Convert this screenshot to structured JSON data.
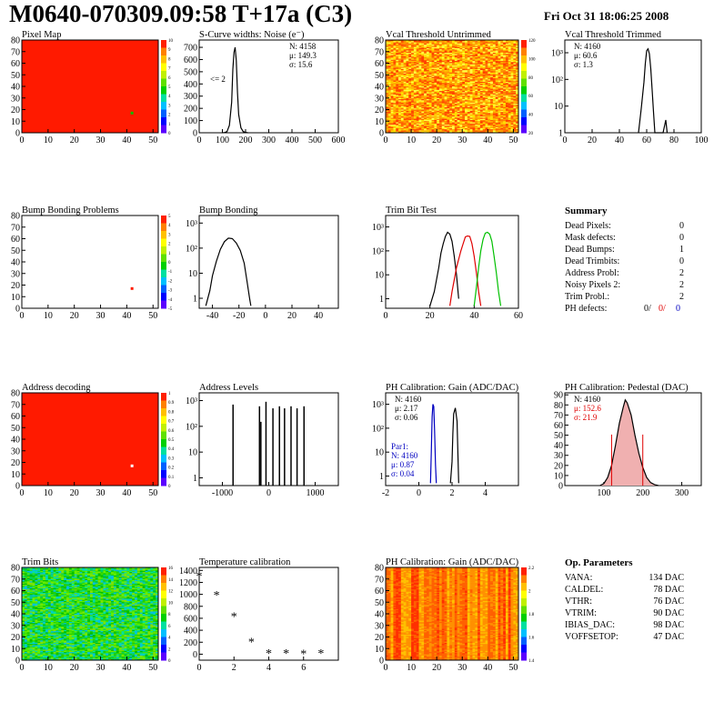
{
  "header": {
    "title": "M0640-070309.09:58 T+17a (C3)",
    "date": "Fri Oct 31 18:06:25 2008"
  },
  "palette": {
    "chip_red": "#ff1a00",
    "black": "#000000",
    "red": "#e00000",
    "green": "#00c000",
    "blue": "#0000c0",
    "rainbow": [
      "#5a00ff",
      "#0000ff",
      "#0060ff",
      "#00c0ff",
      "#00e0a0",
      "#00d000",
      "#60e000",
      "#c0f000",
      "#ffff00",
      "#ffc000",
      "#ff8000",
      "#ff2000"
    ]
  },
  "panels": [
    {
      "id": "pixel-map",
      "title": "Pixel Map",
      "kind": "map",
      "xticks": [
        0,
        10,
        20,
        30,
        40,
        50
      ],
      "yticks": [
        0,
        10,
        20,
        30,
        40,
        50,
        60,
        70,
        80
      ],
      "xrange": [
        0,
        52
      ],
      "yrange": [
        0,
        80
      ],
      "fill": "uniform-red",
      "dots": [
        {
          "x": 42,
          "y": 17,
          "color": "#00c000"
        }
      ],
      "zlabels": [
        "10",
        "9",
        "8",
        "7",
        "6",
        "5",
        "4",
        "3",
        "2",
        "1",
        "0"
      ]
    },
    {
      "id": "s-curve-widths",
      "title": "S-Curve widths: Noise (e⁻)",
      "kind": "histo",
      "xticks": [
        0,
        100,
        200,
        300,
        400,
        500,
        600
      ],
      "xrange": [
        0,
        600
      ],
      "yticks": [
        0,
        100,
        200,
        300,
        400,
        500,
        600,
        700
      ],
      "yrange": [
        0,
        760
      ],
      "log": false,
      "stats": [
        "N: 4158",
        "μ: 149.3",
        "σ: 15.6"
      ],
      "annotation": "<= 2",
      "series": [
        {
          "color": "#000000",
          "points": [
            [
              100,
              0
            ],
            [
              110,
              2
            ],
            [
              120,
              10
            ],
            [
              130,
              60
            ],
            [
              140,
              250
            ],
            [
              145,
              520
            ],
            [
              150,
              660
            ],
            [
              155,
              700
            ],
            [
              160,
              590
            ],
            [
              165,
              330
            ],
            [
              170,
              150
            ],
            [
              180,
              40
            ],
            [
              190,
              10
            ],
            [
              200,
              3
            ],
            [
              210,
              0
            ]
          ]
        }
      ]
    },
    {
      "id": "vcal-threshold-untrimmed",
      "title": "Vcal Threshold Untrimmed",
      "kind": "heat",
      "heat": "orange",
      "xticks": [
        0,
        10,
        20,
        30,
        40,
        50
      ],
      "yticks": [
        0,
        10,
        20,
        30,
        40,
        50,
        60,
        70,
        80
      ],
      "xrange": [
        0,
        52
      ],
      "yrange": [
        0,
        80
      ],
      "zlabels": [
        "120",
        "100",
        "80",
        "60",
        "40",
        "20"
      ]
    },
    {
      "id": "vcal-threshold-trimmed",
      "title": "Vcal Threshold Trimmed",
      "kind": "histo",
      "xticks": [
        0,
        20,
        40,
        60,
        80,
        100
      ],
      "xrange": [
        0,
        100
      ],
      "yticks": [
        1,
        10,
        100,
        1000
      ],
      "yticklabels": [
        "1",
        "10",
        "10²",
        "10³"
      ],
      "yrange": [
        1,
        3000
      ],
      "log": true,
      "stats": [
        "N: 4160",
        "μ: 60.6",
        "σ:  1.3"
      ],
      "series": [
        {
          "color": "#000000",
          "points": [
            [
              54,
              1
            ],
            [
              56,
              8
            ],
            [
              58,
              80
            ],
            [
              59,
              400
            ],
            [
              60,
              1200
            ],
            [
              61,
              1400
            ],
            [
              62,
              900
            ],
            [
              63,
              250
            ],
            [
              64,
              40
            ],
            [
              65,
              6
            ],
            [
              66,
              1
            ],
            [
              72,
              1
            ],
            [
              74,
              3
            ],
            [
              75,
              1
            ]
          ]
        }
      ]
    },
    {
      "id": "bump-bonding-problems",
      "title": "Bump Bonding Problems",
      "kind": "map",
      "xticks": [
        0,
        10,
        20,
        30,
        40,
        50
      ],
      "yticks": [
        0,
        10,
        20,
        30,
        40,
        50,
        60,
        70,
        80
      ],
      "xrange": [
        0,
        52
      ],
      "yrange": [
        0,
        80
      ],
      "fill": "white",
      "dots": [
        {
          "x": 42,
          "y": 17,
          "color": "#ff1a00"
        }
      ],
      "zlabels": [
        "5",
        "4",
        "3",
        "2",
        "1",
        "0",
        "-1",
        "-2",
        "-3",
        "-4",
        "-5"
      ]
    },
    {
      "id": "bump-bonding",
      "title": "Bump Bonding",
      "kind": "histo",
      "xticks": [
        -40,
        -20,
        0,
        20,
        40
      ],
      "xrange": [
        -50,
        55
      ],
      "yticks": [
        1,
        10,
        100,
        1000
      ],
      "yticklabels": [
        "1",
        "10",
        "10²",
        "10³"
      ],
      "yrange": [
        0.4,
        2000
      ],
      "log": true,
      "series": [
        {
          "color": "#000000",
          "points": [
            [
              -45,
              0.5
            ],
            [
              -42,
              2
            ],
            [
              -40,
              8
            ],
            [
              -37,
              30
            ],
            [
              -34,
              90
            ],
            [
              -31,
              180
            ],
            [
              -28,
              250
            ],
            [
              -25,
              240
            ],
            [
              -22,
              160
            ],
            [
              -19,
              80
            ],
            [
              -16,
              25
            ],
            [
              -14,
              5
            ],
            [
              -12,
              1
            ],
            [
              -11,
              0.5
            ]
          ]
        }
      ]
    },
    {
      "id": "trim-bit-test",
      "title": "Trim Bit Test",
      "kind": "histo",
      "xticks": [
        0,
        20,
        40,
        60
      ],
      "xrange": [
        0,
        60
      ],
      "yticks": [
        1,
        10,
        100,
        1000
      ],
      "yticklabels": [
        "1",
        "10",
        "10²",
        "10³"
      ],
      "yrange": [
        0.4,
        3000
      ],
      "log": true,
      "series": [
        {
          "color": "#000000",
          "points": [
            [
              20,
              0.5
            ],
            [
              22,
              2
            ],
            [
              24,
              20
            ],
            [
              25,
              80
            ],
            [
              26,
              200
            ],
            [
              27,
              400
            ],
            [
              28,
              600
            ],
            [
              29,
              500
            ],
            [
              30,
              250
            ],
            [
              31,
              60
            ],
            [
              32,
              10
            ],
            [
              33,
              1
            ]
          ]
        },
        {
          "color": "#e00000",
          "points": [
            [
              29,
              0.5
            ],
            [
              30,
              2
            ],
            [
              32,
              20
            ],
            [
              34,
              100
            ],
            [
              35,
              200
            ],
            [
              36,
              380
            ],
            [
              37,
              420
            ],
            [
              38,
              400
            ],
            [
              39,
              200
            ],
            [
              40,
              60
            ],
            [
              41,
              12
            ],
            [
              42,
              2
            ],
            [
              43,
              0.5
            ]
          ]
        },
        {
          "color": "#00c000",
          "points": [
            [
              40,
              0.5
            ],
            [
              41,
              3
            ],
            [
              42,
              20
            ],
            [
              43,
              100
            ],
            [
              44,
              300
            ],
            [
              45,
              550
            ],
            [
              46,
              600
            ],
            [
              47,
              500
            ],
            [
              48,
              250
            ],
            [
              49,
              60
            ],
            [
              50,
              12
            ],
            [
              51,
              2
            ],
            [
              52,
              0.5
            ]
          ]
        }
      ]
    },
    {
      "id": "summary",
      "title": "Summary",
      "kind": "table",
      "rows": [
        [
          "Dead Pixels:",
          "0"
        ],
        [
          "Mask defects:",
          "0"
        ],
        [
          "Dead Bumps:",
          "1"
        ],
        [
          "Dead Trimbits:",
          "0"
        ],
        [
          "Address Probl:",
          "2"
        ],
        [
          "Noisy Pixels 2:",
          "2"
        ],
        [
          "Trim Probl.:",
          "2"
        ]
      ],
      "ph_row": {
        "label": "PH defects:",
        "values": [
          "0/",
          "0/",
          "0"
        ],
        "colors": [
          "#000000",
          "#e00000",
          "#0000c0"
        ]
      }
    },
    {
      "id": "address-decoding",
      "title": "Address decoding",
      "kind": "map",
      "xticks": [
        0,
        10,
        20,
        30,
        40,
        50
      ],
      "yticks": [
        0,
        10,
        20,
        30,
        40,
        50,
        60,
        70,
        80
      ],
      "xrange": [
        0,
        52
      ],
      "yrange": [
        0,
        80
      ],
      "fill": "uniform-red",
      "dots": [
        {
          "x": 42,
          "y": 17,
          "color": "#ffffff"
        }
      ],
      "zlabels": [
        "1",
        "0.9",
        "0.8",
        "0.7",
        "0.6",
        "0.5",
        "0.4",
        "0.3",
        "0.2",
        "0.1",
        "0"
      ]
    },
    {
      "id": "address-levels",
      "title": "Address Levels",
      "kind": "spikes",
      "xticks": [
        -1000,
        0,
        1000
      ],
      "xrange": [
        -1500,
        1500
      ],
      "yticks": [
        1,
        10,
        100,
        1000
      ],
      "yticklabels": [
        "1",
        "10",
        "10²",
        "10³"
      ],
      "yrange": [
        0.5,
        2000
      ],
      "log": true,
      "spikes": [
        [
          -770,
          700
        ],
        [
          -200,
          600
        ],
        [
          -170,
          150
        ],
        [
          -60,
          900
        ],
        [
          90,
          500
        ],
        [
          230,
          600
        ],
        [
          340,
          500
        ],
        [
          480,
          600
        ],
        [
          610,
          500
        ],
        [
          760,
          600
        ]
      ]
    },
    {
      "id": "ph-calibration-gain",
      "title": "PH Calibration: Gain (ADC/DAC)",
      "kind": "histo",
      "xticks": [
        -2,
        0,
        2,
        4
      ],
      "xrange": [
        -2,
        6
      ],
      "yticks": [
        1,
        10,
        100,
        1000
      ],
      "yticklabels": [
        "1",
        "10",
        "10²",
        "10³"
      ],
      "yrange": [
        0.4,
        3000
      ],
      "log": true,
      "stats": [
        "N: 4160",
        "μ: 2.17",
        "σ: 0.06"
      ],
      "stats2": {
        "color": "#0000c0",
        "lines": [
          "Par1:",
          "N: 4160",
          "μ: 0.87",
          "σ: 0.04"
        ]
      },
      "series": [
        {
          "color": "#000000",
          "points": [
            [
              1.9,
              0.5
            ],
            [
              2.0,
              4
            ],
            [
              2.05,
              60
            ],
            [
              2.1,
              400
            ],
            [
              2.2,
              700
            ],
            [
              2.3,
              200
            ],
            [
              2.35,
              10
            ],
            [
              2.4,
              0.5
            ]
          ]
        },
        {
          "color": "#0000c0",
          "points": [
            [
              0.7,
              0.5
            ],
            [
              0.75,
              10
            ],
            [
              0.8,
              300
            ],
            [
              0.85,
              1000
            ],
            [
              0.9,
              800
            ],
            [
              0.95,
              80
            ],
            [
              1.0,
              3
            ],
            [
              1.05,
              0.5
            ]
          ]
        }
      ]
    },
    {
      "id": "ph-calibration-pedestal",
      "title": "PH Calibration: Pedestal (DAC)",
      "kind": "histo",
      "xticks": [
        100,
        200,
        300
      ],
      "xrange": [
        0,
        350
      ],
      "yticks": [
        0,
        10,
        20,
        30,
        40,
        50,
        60,
        70,
        80,
        90
      ],
      "yrange": [
        0,
        92
      ],
      "log": false,
      "stats": [
        "N: 4160"
      ],
      "stats_red": [
        "μ: 152.6",
        "σ: 21.9"
      ],
      "series": [
        {
          "color": "#000000",
          "fill": "hatch-red",
          "points": [
            [
              90,
              0
            ],
            [
              100,
              2
            ],
            [
              110,
              8
            ],
            [
              120,
              20
            ],
            [
              130,
              40
            ],
            [
              140,
              62
            ],
            [
              150,
              78
            ],
            [
              155,
              85
            ],
            [
              160,
              82
            ],
            [
              170,
              70
            ],
            [
              180,
              50
            ],
            [
              190,
              32
            ],
            [
              200,
              18
            ],
            [
              210,
              8
            ],
            [
              220,
              3
            ],
            [
              230,
              1
            ],
            [
              240,
              0
            ]
          ]
        }
      ],
      "markers": [
        120,
        200
      ]
    },
    {
      "id": "trim-bits",
      "title": "Trim Bits",
      "kind": "heat",
      "heat": "green",
      "xticks": [
        0,
        10,
        20,
        30,
        40,
        50
      ],
      "yticks": [
        0,
        10,
        20,
        30,
        40,
        50,
        60,
        70,
        80
      ],
      "xrange": [
        0,
        52
      ],
      "yrange": [
        0,
        80
      ],
      "zlabels": [
        "16",
        "14",
        "12",
        "10",
        "8",
        "6",
        "4",
        "2",
        "0"
      ]
    },
    {
      "id": "temperature-calibration",
      "title": "Temperature calibration",
      "kind": "scatter",
      "xticks": [
        0,
        2,
        4,
        6
      ],
      "xrange": [
        0,
        8
      ],
      "yticks": [
        0,
        200,
        400,
        600,
        800,
        1000,
        1200,
        1400
      ],
      "yrange": [
        -100,
        1450
      ],
      "log": false,
      "points": [
        [
          0,
          1300
        ],
        [
          1,
          980
        ],
        [
          2,
          620
        ],
        [
          3,
          200
        ],
        [
          4,
          5
        ],
        [
          5,
          5
        ],
        [
          6,
          0
        ],
        [
          7,
          5
        ]
      ]
    },
    {
      "id": "ph-calibration-gain-map",
      "title": "PH Calibration: Gain (ADC/DAC)",
      "kind": "heat",
      "heat": "stripes",
      "xticks": [
        0,
        10,
        20,
        30,
        40,
        50
      ],
      "yticks": [
        0,
        10,
        20,
        30,
        40,
        50,
        60,
        70,
        80
      ],
      "xrange": [
        0,
        52
      ],
      "yrange": [
        0,
        80
      ],
      "zlabels": [
        "2.2",
        "2",
        "1.8",
        "1.6",
        "1.4"
      ]
    },
    {
      "id": "op-parameters",
      "title": "Op. Parameters",
      "kind": "table",
      "rows": [
        [
          "VANA:",
          "134 DAC"
        ],
        [
          "CALDEL:",
          "78 DAC"
        ],
        [
          "VTHR:",
          "76 DAC"
        ],
        [
          "VTRIM:",
          "90 DAC"
        ],
        [
          "IBIAS_DAC:",
          "98 DAC"
        ],
        [
          "VOFFSETOP:",
          "47 DAC"
        ]
      ]
    }
  ]
}
